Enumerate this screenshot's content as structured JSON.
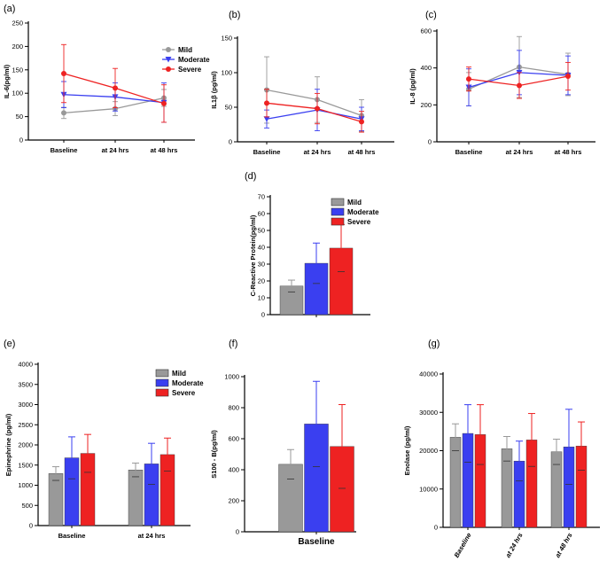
{
  "colors": {
    "mild": "#999999",
    "moderate": "#3a3ff0",
    "severe": "#ee2222",
    "mildLine": "#9a9a9a",
    "moderateLine": "#3a3ff0",
    "severeLine": "#ee2222"
  },
  "chart_data": [
    {
      "id": "a",
      "panel_label": "(a)",
      "type": "line",
      "ylabel": "IL-6(pg/ml)",
      "categories": [
        "Baseline",
        "at 24 hrs",
        "at 48 hrs"
      ],
      "ylim": [
        0,
        250
      ],
      "yticks": [
        0,
        50,
        100,
        150,
        200,
        250
      ],
      "legend": "top-right",
      "series": [
        {
          "name": "Mild",
          "key": "mild",
          "values": [
            58,
            67,
            90
          ],
          "err": [
            12,
            15,
            18
          ],
          "marker": "circle"
        },
        {
          "name": "Moderate",
          "key": "moderate",
          "values": [
            97,
            92,
            80
          ],
          "err": [
            28,
            30,
            42
          ],
          "marker": "triangle-down"
        },
        {
          "name": "Severe",
          "key": "severe",
          "values": [
            142,
            111,
            78
          ],
          "err": [
            62,
            42,
            40
          ],
          "marker": "circle"
        }
      ]
    },
    {
      "id": "b",
      "panel_label": "(b)",
      "type": "line",
      "ylabel": "IL1β (pg/ml)",
      "categories": [
        "Baseline",
        "at 24 hrs",
        "at 48 hrs"
      ],
      "ylim": [
        0,
        150
      ],
      "yticks": [
        0,
        50,
        100,
        150
      ],
      "series": [
        {
          "name": "Mild",
          "key": "mild",
          "values": [
            75,
            61,
            38
          ],
          "err": [
            48,
            33,
            23
          ],
          "marker": "circle"
        },
        {
          "name": "Moderate",
          "key": "moderate",
          "values": [
            33,
            46,
            33
          ],
          "err": [
            13,
            30,
            17
          ],
          "marker": "triangle-down"
        },
        {
          "name": "Severe",
          "key": "severe",
          "values": [
            56,
            48,
            29
          ],
          "err": [
            20,
            22,
            15
          ],
          "marker": "circle"
        }
      ]
    },
    {
      "id": "c",
      "panel_label": "(c)",
      "type": "line",
      "ylabel": "IL-8 (pg/ml)",
      "categories": [
        "Baseline",
        "at 24 hrs",
        "at 48 hrs"
      ],
      "ylim": [
        0,
        600
      ],
      "yticks": [
        0,
        200,
        400,
        600
      ],
      "series": [
        {
          "name": "Mild",
          "key": "mild",
          "values": [
            285,
            405,
            365
          ],
          "err": [
            90,
            165,
            115
          ],
          "marker": "circle"
        },
        {
          "name": "Moderate",
          "key": "moderate",
          "values": [
            295,
            375,
            360
          ],
          "err": [
            100,
            120,
            105
          ],
          "marker": "triangle-down"
        },
        {
          "name": "Severe",
          "key": "severe",
          "values": [
            340,
            305,
            355
          ],
          "err": [
            65,
            70,
            75
          ],
          "marker": "circle"
        }
      ]
    },
    {
      "id": "d",
      "panel_label": "(d)",
      "type": "bar",
      "ylabel": "C-Reactive Protein(pg/ml)",
      "categories": [
        ""
      ],
      "ylim": [
        0,
        70
      ],
      "yticks": [
        0,
        10,
        20,
        30,
        40,
        50,
        60,
        70
      ],
      "legend": "top-right",
      "series": [
        {
          "name": "Mild",
          "key": "mild",
          "values": [
            17
          ],
          "err": [
            3.5
          ]
        },
        {
          "name": "Moderate",
          "key": "moderate",
          "values": [
            30.5
          ],
          "err": [
            12
          ]
        },
        {
          "name": "Severe",
          "key": "severe",
          "values": [
            39.5
          ],
          "err": [
            14
          ]
        }
      ]
    },
    {
      "id": "e",
      "panel_label": "(e)",
      "type": "bar",
      "ylabel": "Epinephrine (pg/ml)",
      "categories": [
        "Baseline",
        "at 24 hrs"
      ],
      "ylim": [
        0,
        4000
      ],
      "yticks": [
        0,
        500,
        1000,
        1500,
        2000,
        2500,
        3000,
        3500,
        4000
      ],
      "legend": "top-right",
      "series": [
        {
          "name": "Mild",
          "key": "mild",
          "values": [
            1290,
            1380
          ],
          "err": [
            170,
            170
          ]
        },
        {
          "name": "Moderate",
          "key": "moderate",
          "values": [
            1680,
            1530
          ],
          "err": [
            520,
            510
          ]
        },
        {
          "name": "Severe",
          "key": "severe",
          "values": [
            1790,
            1760
          ],
          "err": [
            470,
            410
          ]
        }
      ]
    },
    {
      "id": "f",
      "panel_label": "(f)",
      "type": "bar",
      "ylabel": "S100 - B(pg/ml)",
      "categories": [
        "Baseline"
      ],
      "ylim": [
        0,
        1000
      ],
      "yticks": [
        0,
        200,
        400,
        600,
        800,
        1000
      ],
      "series": [
        {
          "name": "Mild",
          "key": "mild",
          "values": [
            435
          ],
          "err": [
            95
          ]
        },
        {
          "name": "Moderate",
          "key": "moderate",
          "values": [
            695
          ],
          "err": [
            275
          ]
        },
        {
          "name": "Severe",
          "key": "severe",
          "values": [
            550
          ],
          "err": [
            270
          ]
        }
      ]
    },
    {
      "id": "g",
      "panel_label": "(g)",
      "type": "bar",
      "ylabel": "Enolase (pg/ml)",
      "categories": [
        "Baseline",
        "at 24 hrs",
        "at 48 hrs"
      ],
      "ylim": [
        0,
        40000
      ],
      "yticks": [
        0,
        10000,
        20000,
        30000,
        40000
      ],
      "xtick_rotated": true,
      "series": [
        {
          "name": "Mild",
          "key": "mild",
          "values": [
            23500,
            20500,
            19700
          ],
          "err": [
            3500,
            3200,
            3300
          ]
        },
        {
          "name": "Moderate",
          "key": "moderate",
          "values": [
            24500,
            17300,
            21000
          ],
          "err": [
            7500,
            5200,
            9800
          ]
        },
        {
          "name": "Severe",
          "key": "severe",
          "values": [
            24200,
            22800,
            21200
          ],
          "err": [
            7800,
            6900,
            6300
          ]
        }
      ]
    }
  ]
}
